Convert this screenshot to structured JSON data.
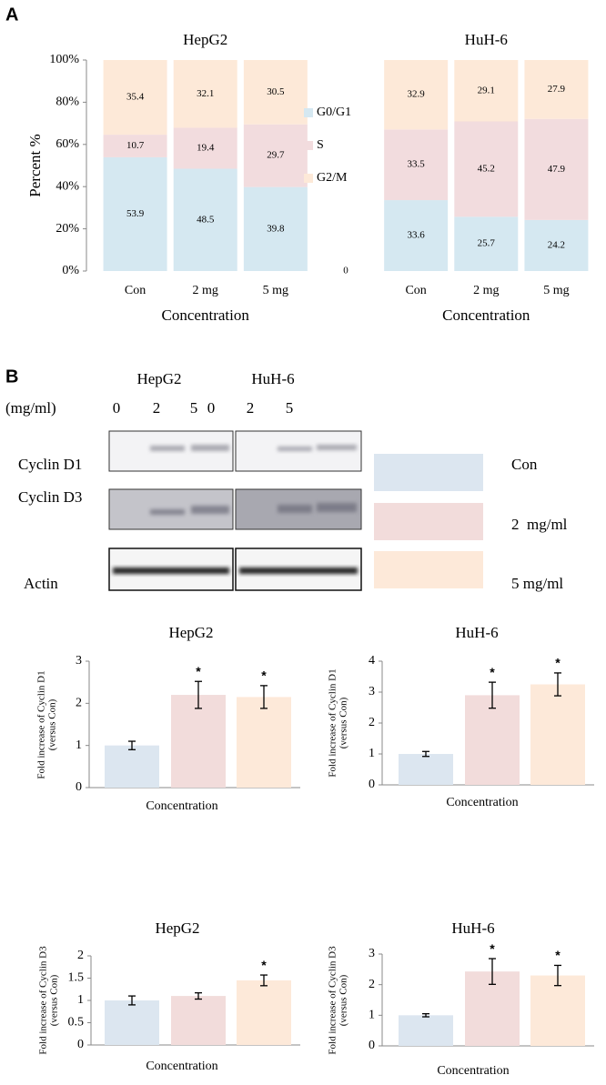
{
  "panel_labels": [
    "A",
    "B"
  ],
  "chart_data": [
    {
      "type": "stacked_bar",
      "group_titles": [
        "HepG2",
        "HuH-6"
      ],
      "xlabel": "Concentration",
      "ylabel": "Percent %",
      "categories": [
        "Con",
        "2 mg",
        "5 mg",
        null,
        "Con",
        "2 mg",
        "5 mg"
      ],
      "series": [
        {
          "name": "G0/G1",
          "color": "#d5e8f1",
          "values": [
            53.9,
            48.5,
            39.8,
            0,
            33.6,
            25.7,
            24.2
          ]
        },
        {
          "name": "S",
          "color": "#f2dcde",
          "values": [
            10.7,
            19.4,
            29.7,
            null,
            33.5,
            45.2,
            47.9
          ]
        },
        {
          "name": "G2/M",
          "color": "#fde9d8",
          "values": [
            35.4,
            32.1,
            30.5,
            null,
            32.9,
            29.1,
            27.9
          ]
        }
      ],
      "ylim": [
        0,
        100
      ],
      "yticks": [
        {
          "value": 0,
          "label": "0%"
        },
        {
          "value": 20,
          "label": "20%"
        },
        {
          "value": 40,
          "label": "40%"
        },
        {
          "value": 60,
          "label": "60%"
        },
        {
          "value": 80,
          "label": "80%"
        },
        {
          "value": 100,
          "label": "100%"
        }
      ],
      "legend": "center"
    },
    {
      "type": "bar",
      "title": "HepG2",
      "xlabel": "Concentration",
      "ylabel": [
        "Fold increase of Cyclin D1",
        "(versus Con)"
      ],
      "values": [
        1.0,
        2.2,
        2.15
      ],
      "errors": [
        0.1,
        0.32,
        0.27
      ],
      "significance": [
        null,
        "*",
        "*"
      ],
      "colors": [
        "#dce6f0",
        "#f2dcdb",
        "#fde9d9"
      ],
      "ylim": [
        0,
        3
      ],
      "yticks": [
        0,
        1,
        2,
        3
      ]
    },
    {
      "type": "bar",
      "title": "HuH-6",
      "xlabel": "Concentration",
      "ylabel": [
        "Fold increase of Cyclin D1",
        "(versus Con)"
      ],
      "values": [
        1.0,
        2.9,
        3.25
      ],
      "errors": [
        0.08,
        0.42,
        0.37
      ],
      "significance": [
        null,
        "*",
        "*"
      ],
      "colors": [
        "#dce6f0",
        "#f2dcdb",
        "#fde9d9"
      ],
      "ylim": [
        0,
        4
      ],
      "yticks": [
        0,
        1,
        2,
        3,
        4
      ]
    },
    {
      "type": "bar",
      "title": "HepG2",
      "xlabel": "Concentration",
      "ylabel": [
        "Fold increase of Cyclin D3",
        "(versus Con)"
      ],
      "values": [
        1.0,
        1.1,
        1.45
      ],
      "errors": [
        0.1,
        0.07,
        0.12
      ],
      "significance": [
        null,
        null,
        "*"
      ],
      "colors": [
        "#dce6f0",
        "#f2dcdb",
        "#fde9d9"
      ],
      "ylim": [
        0,
        2
      ],
      "yticks": [
        0,
        0.5,
        1,
        1.5,
        2
      ]
    },
    {
      "type": "bar",
      "title": "HuH-6",
      "xlabel": "Concentration",
      "ylabel": [
        "Fold increase of Cyclin D3",
        "(versus Con)"
      ],
      "values": [
        1.0,
        2.43,
        2.3
      ],
      "errors": [
        0.05,
        0.42,
        0.33
      ],
      "significance": [
        null,
        "*",
        "*"
      ],
      "colors": [
        "#dce6f0",
        "#f2dcdb",
        "#fde9d9"
      ],
      "ylim": [
        0,
        3
      ],
      "yticks": [
        0,
        1,
        2,
        3
      ]
    }
  ],
  "blot": {
    "cell_lines": [
      "HepG2",
      "HuH-6"
    ],
    "unit": "(mg/ml)",
    "doses": [
      "0",
      "2",
      "5",
      "0",
      "2",
      "5"
    ],
    "proteins": [
      "Cyclin D1",
      "Cyclin D3",
      "Actin"
    ],
    "legend": [
      {
        "name": "Con",
        "color": "#dce6f0"
      },
      {
        "name": "2  mg/ml",
        "color": "#f2dcdb"
      },
      {
        "name": "5 mg/ml",
        "color": "#fde9d9"
      }
    ]
  }
}
